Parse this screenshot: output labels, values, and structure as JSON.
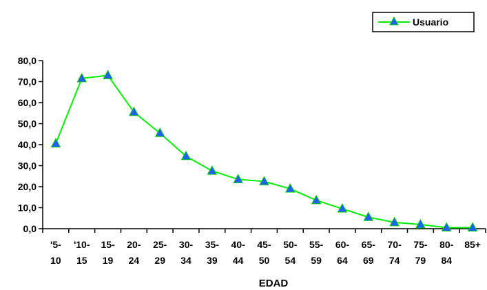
{
  "chart_data": {
    "type": "line",
    "title": "",
    "xlabel": "EDAD",
    "ylabel": "",
    "ylim": [
      0,
      80
    ],
    "yticks": [
      "0,0",
      "10,0",
      "20,0",
      "30,0",
      "40,0",
      "50,0",
      "60,0",
      "70,0",
      "80,0"
    ],
    "categories": [
      [
        "'5-",
        "10"
      ],
      [
        "'10-",
        "15"
      ],
      [
        "15-",
        "19"
      ],
      [
        "20-",
        "24"
      ],
      [
        "25-",
        "29"
      ],
      [
        "30-",
        "34"
      ],
      [
        "35-",
        "39"
      ],
      [
        "40-",
        "44"
      ],
      [
        "45-",
        "50"
      ],
      [
        "50-",
        "54"
      ],
      [
        "55-",
        "59"
      ],
      [
        "60-",
        "64"
      ],
      [
        "65-",
        "69"
      ],
      [
        "70-",
        "74"
      ],
      [
        "75-",
        "79"
      ],
      [
        "80-",
        "84"
      ],
      [
        "85+",
        ""
      ]
    ],
    "series": [
      {
        "name": "Usuario",
        "color": "#00ee00",
        "marker_color": "#2060ff",
        "values": [
          40.5,
          71.5,
          73.0,
          55.5,
          45.5,
          34.5,
          27.5,
          23.5,
          22.5,
          19.0,
          13.5,
          9.5,
          5.5,
          3.0,
          2.0,
          0.5,
          0.5
        ]
      }
    ],
    "legend": "top-right",
    "grid": false
  }
}
